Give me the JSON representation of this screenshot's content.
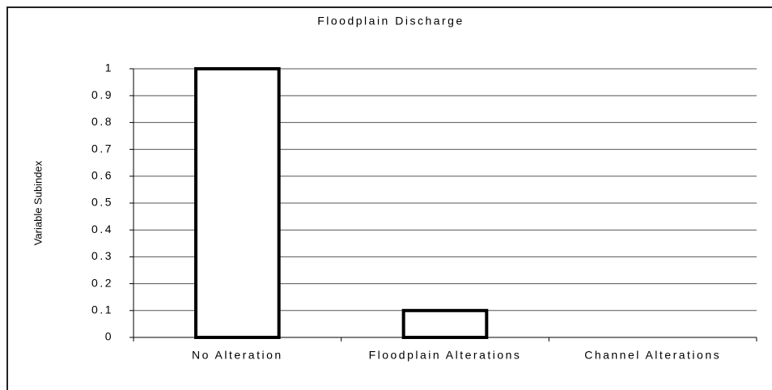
{
  "chart_data": {
    "type": "bar",
    "title": "Floodplain Discharge",
    "ylabel": "Variable Subindex",
    "categories": [
      "No Alteration",
      "Floodplain Alterations",
      "Channel Alterations"
    ],
    "values": [
      1,
      0.1,
      0
    ],
    "color": "#ffffff",
    "ylim": [
      0,
      1
    ],
    "yticks": [
      0,
      0.1,
      0.2,
      0.3,
      0.4,
      0.5,
      0.6,
      0.7,
      0.8,
      0.9,
      1
    ],
    "grid": true
  }
}
